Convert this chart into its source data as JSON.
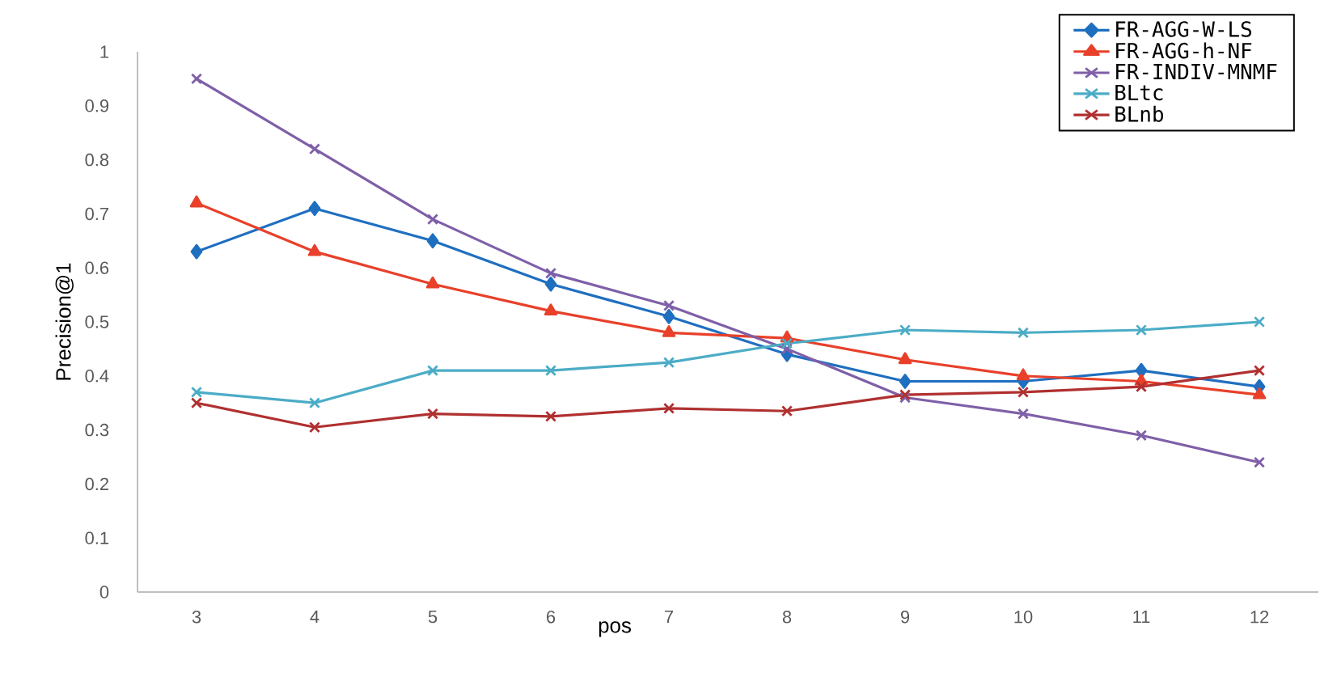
{
  "chart_data": {
    "type": "line",
    "xlabel": "pos",
    "ylabel": "Precision@1",
    "categories": [
      "3",
      "4",
      "5",
      "6",
      "7",
      "8",
      "9",
      "10",
      "11",
      "12"
    ],
    "series": [
      {
        "name": "FR-AGG-W-LS",
        "color": "#1f6fc0",
        "marker": "diamond",
        "values": [
          0.63,
          0.71,
          0.65,
          0.57,
          0.51,
          0.44,
          0.39,
          0.39,
          0.41,
          0.38
        ]
      },
      {
        "name": "FR-AGG-h-NF",
        "color": "#e8402a",
        "marker": "triangle",
        "values": [
          0.72,
          0.63,
          0.57,
          0.52,
          0.48,
          0.47,
          0.43,
          0.4,
          0.39,
          0.365
        ]
      },
      {
        "name": "FR-INDIV-MNMF",
        "color": "#7f5fa8",
        "marker": "cross",
        "values": [
          0.95,
          0.82,
          0.69,
          0.59,
          0.53,
          0.45,
          0.36,
          0.33,
          0.29,
          0.24
        ]
      },
      {
        "name": "BLtc",
        "color": "#4bacc6",
        "marker": "cross",
        "values": [
          0.37,
          0.35,
          0.41,
          0.41,
          0.425,
          0.46,
          0.485,
          0.48,
          0.485,
          0.5
        ]
      },
      {
        "name": "BLnb",
        "color": "#b03030",
        "marker": "cross",
        "values": [
          0.35,
          0.305,
          0.33,
          0.325,
          0.34,
          0.335,
          0.365,
          0.37,
          0.38,
          0.41
        ]
      }
    ],
    "ylim": [
      0,
      1
    ],
    "yticks": [
      0,
      0.1,
      0.2,
      0.3,
      0.4,
      0.5,
      0.6,
      0.7,
      0.8,
      0.9,
      1
    ],
    "grid": false,
    "legend": "top right",
    "line_style": "solid"
  }
}
